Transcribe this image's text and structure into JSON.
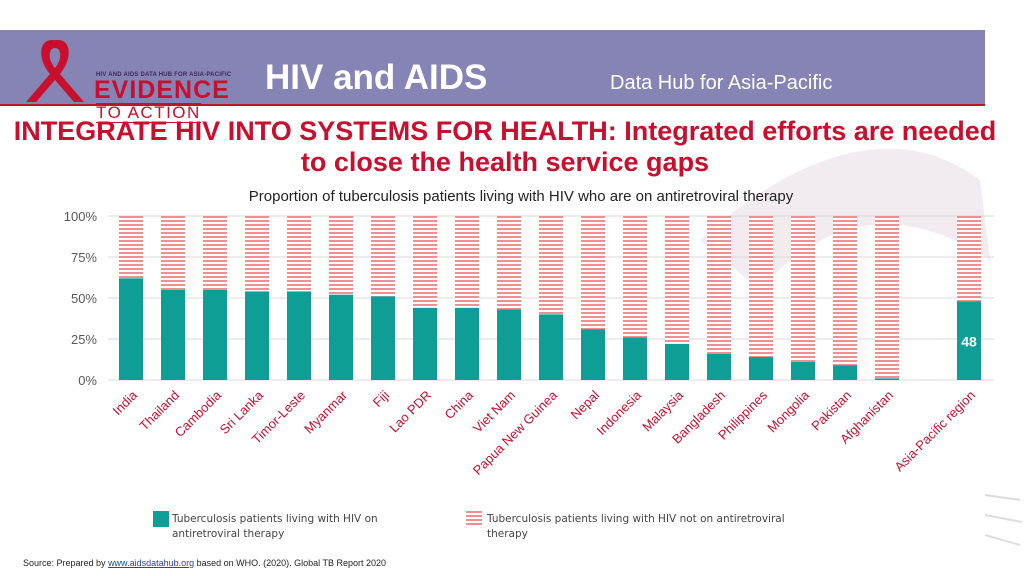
{
  "header": {
    "logo_small": "HIV AND AIDS DATA HUB FOR ASIA-PACIFIC",
    "logo_big": "EVIDENCE",
    "logo_sub": "TO ACTION",
    "title": "HIV and AIDS",
    "subtitle": "Data Hub for Asia-Pacific"
  },
  "headline": "INTEGRATE HIV INTO SYSTEMS FOR HEALTH: Integrated efforts are needed to close the health service gaps",
  "colors": {
    "on_art": "#0e9e96",
    "not_on_art": "#ef8f8f",
    "headline": "#c8102e",
    "header_band": "#8683b5"
  },
  "chart_data": {
    "type": "bar",
    "stacked": true,
    "title": "Proportion of tuberculosis patients living with HIV who are on antiretroviral therapy",
    "categories": [
      "India",
      "Thailand",
      "Cambodia",
      "Sri Lanka",
      "Timor-Leste",
      "Myanmar",
      "Fiji",
      "Lao PDR",
      "China",
      "Viet Nam",
      "Papua New Guinea",
      "Nepal",
      "Indonesia",
      "Malaysia",
      "Bangladesh",
      "Philippines",
      "Mongolia",
      "Pakistan",
      "Afghanistan",
      "Asia-Pacific region"
    ],
    "series": [
      {
        "name": "Tuberculosis patients living with HIV on antiretroviral therapy",
        "values": [
          62,
          55,
          55,
          54,
          54,
          52,
          51,
          44,
          44,
          43,
          40,
          31,
          26,
          22,
          16,
          14,
          11,
          9,
          1,
          48
        ]
      },
      {
        "name": "Tuberculosis patients living with HIV not on antiretroviral therapy",
        "values": [
          38,
          45,
          45,
          46,
          46,
          48,
          49,
          56,
          56,
          57,
          60,
          69,
          74,
          78,
          84,
          86,
          89,
          91,
          99,
          52
        ]
      }
    ],
    "yticks": [
      "0%",
      "25%",
      "50%",
      "75%",
      "100%"
    ],
    "ylim": [
      0,
      100
    ],
    "data_labels": [
      {
        "category": "Asia-Pacific region",
        "text": "48"
      }
    ],
    "legend_position": "bottom"
  },
  "legend": {
    "on_art": "Tuberculosis patients living with HIV on antiretroviral therapy",
    "not_on_art": "Tuberculosis patients living with HIV not on antiretroviral therapy"
  },
  "source": {
    "prefix": "Source: Prepared by ",
    "link": "www.aidsdatahub.org",
    "suffix": " based on WHO. (2020). Global TB Report 2020"
  }
}
